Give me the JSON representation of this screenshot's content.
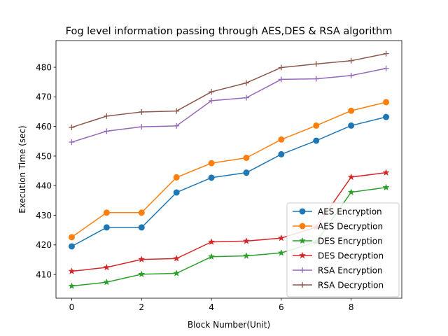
{
  "chart_data": {
    "type": "line",
    "title": "Fog level  information passing through AES,DES & RSA algorithm",
    "xlabel": "Block Number(Unit)",
    "ylabel": "Execution Time (sec)",
    "xlim": [
      -0.45,
      9.45
    ],
    "ylim": [
      402,
      489
    ],
    "xticks": [
      0,
      2,
      4,
      6,
      8
    ],
    "yticks": [
      410,
      420,
      430,
      440,
      450,
      460,
      470,
      480
    ],
    "grid": false,
    "legend_position": "lower-right",
    "x": [
      0,
      1,
      2,
      3,
      4,
      5,
      6,
      7,
      8,
      9
    ],
    "series": [
      {
        "name": "AES Encryption",
        "color": "#1f77b4",
        "marker": "circle",
        "values": [
          419.5,
          425.9,
          425.9,
          437.7,
          442.7,
          444.4,
          450.6,
          455.2,
          460.3,
          463.2
        ]
      },
      {
        "name": "AES Decryption",
        "color": "#ff7f0e",
        "marker": "circle",
        "values": [
          422.6,
          430.9,
          430.9,
          442.8,
          447.6,
          449.4,
          455.6,
          460.3,
          465.3,
          468.2
        ]
      },
      {
        "name": "DES Encryption",
        "color": "#2ca02c",
        "marker": "star",
        "values": [
          406.1,
          407.4,
          410.1,
          410.4,
          416.0,
          416.3,
          417.3,
          421.0,
          437.8,
          439.4
        ]
      },
      {
        "name": "DES Decryption",
        "color": "#d62728",
        "marker": "star",
        "values": [
          411.1,
          412.4,
          415.1,
          415.4,
          421.0,
          421.3,
          422.3,
          426.0,
          442.9,
          444.4
        ]
      },
      {
        "name": "RSA Encryption",
        "color": "#9467bd",
        "marker": "plus",
        "values": [
          454.7,
          458.4,
          459.9,
          460.2,
          468.7,
          469.7,
          475.9,
          476.1,
          477.2,
          479.6
        ]
      },
      {
        "name": "RSA Decryption",
        "color": "#8c564b",
        "marker": "plus",
        "values": [
          459.7,
          463.5,
          464.9,
          465.2,
          471.7,
          474.7,
          479.9,
          481.1,
          482.2,
          484.6
        ]
      }
    ]
  }
}
